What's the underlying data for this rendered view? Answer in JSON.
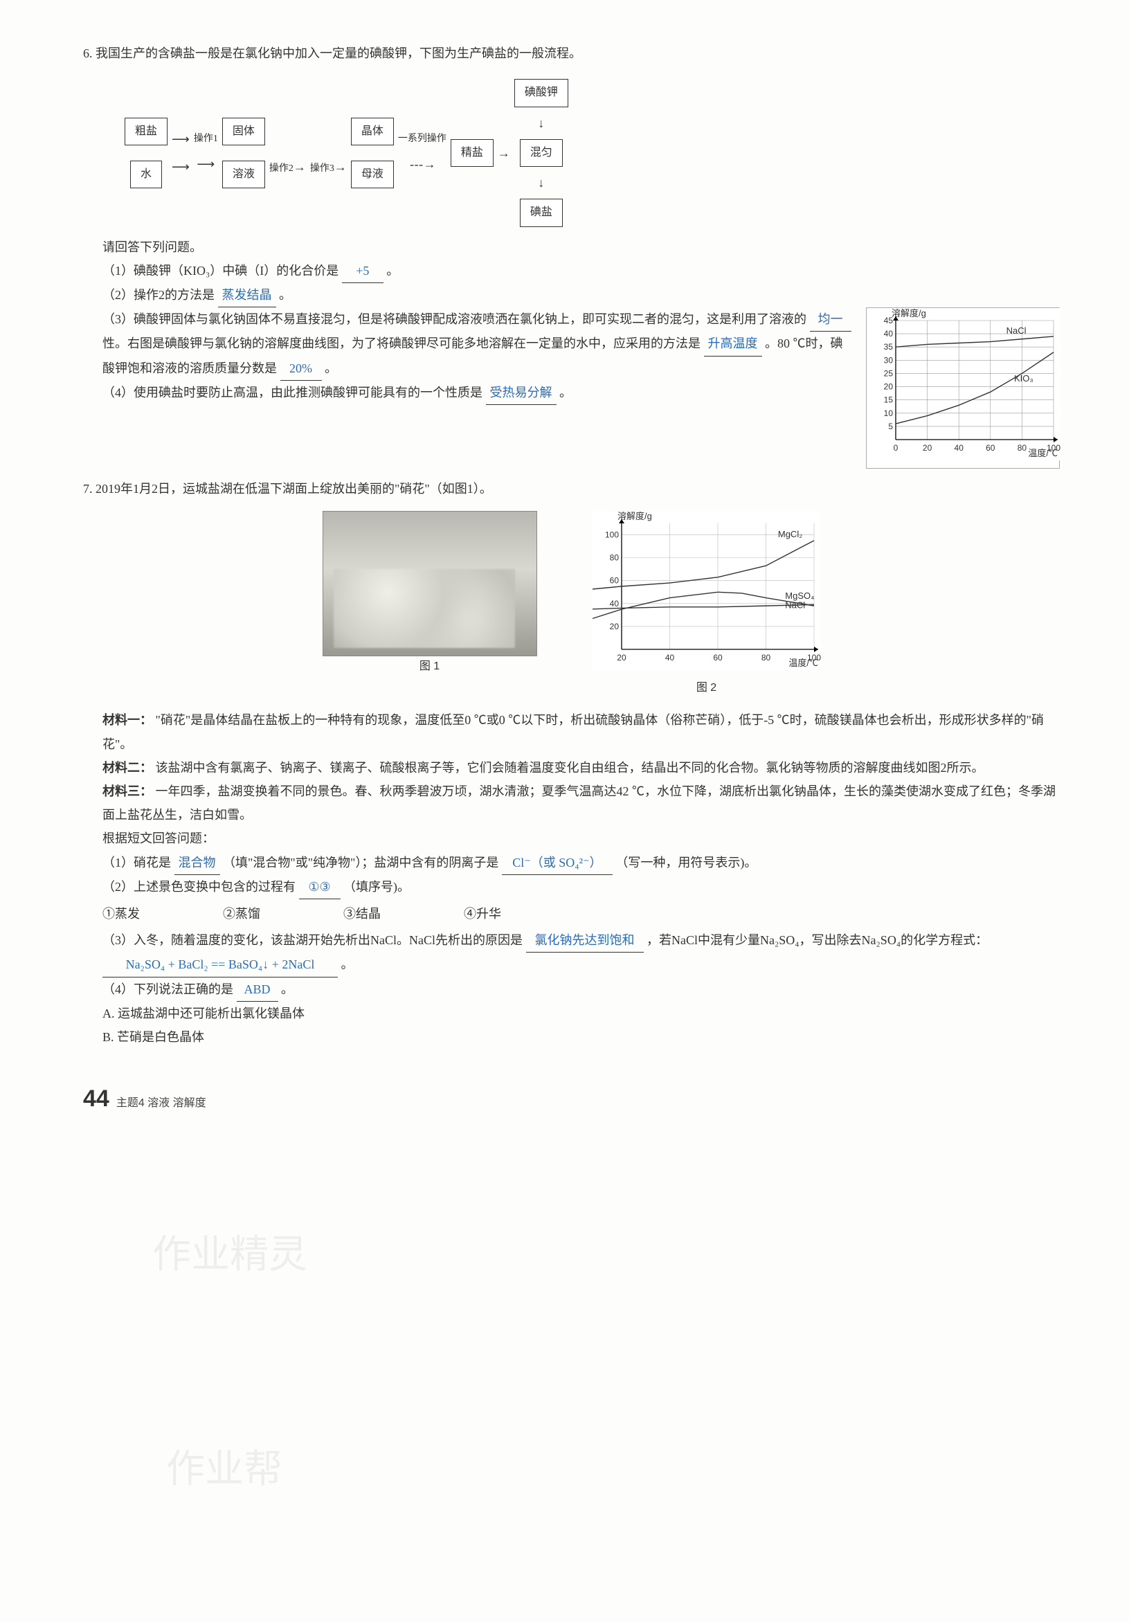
{
  "q6": {
    "stem": "6. 我国生产的含碘盐一般是在氯化钠中加入一定量的碘酸钾，下图为生产碘盐的一般流程。",
    "flow": {
      "n_cusalt": "粗盐",
      "n_water": "水",
      "n_op1": "操作1",
      "n_solid": "固体",
      "n_sol": "溶液",
      "n_op2": "操作2",
      "n_op3": "操作3",
      "n_crystal": "晶体",
      "n_mother": "母液",
      "n_series": "一系列操作",
      "n_fine": "精盐",
      "n_kio3": "碘酸钾",
      "n_mix": "混匀",
      "n_isalt": "碘盐"
    },
    "prompt": "请回答下列问题。",
    "p1_a": "（1）碘酸钾（KIO₃）中碘（I）的化合价是",
    "p1_ans": "+5",
    "p1_b": "。",
    "p2_a": "（2）操作2的方法是",
    "p2_ans": "蒸发结晶",
    "p2_b": "。",
    "p3_a": "（3）碘酸钾固体与氯化钠固体不易直接混匀，但是将碘酸钾配成溶液喷洒在氯化钠上，即可实现二者的混匀，这是利用了溶液的",
    "p3_ans1": "均一",
    "p3_b": "性。右图是碘酸钾与氯化钠的溶解度曲线图，为了将碘酸钾尽可能多地溶解在一定量的水中，应采用的方法是",
    "p3_ans2": "升高温度",
    "p3_c": "。80 ℃时，碘酸钾饱和溶液的溶质质量分数是",
    "p3_ans3": "20%",
    "p3_d": "。",
    "p4_a": "（4）使用碘盐时要防止高温，由此推测碘酸钾可能具有的一个性质是",
    "p4_ans": "受热易分解",
    "p4_b": "。",
    "chart": {
      "ylabel": "溶解度/g",
      "xlabel": "温度/℃",
      "xticks": [
        0,
        20,
        40,
        60,
        80,
        100
      ],
      "yticks": [
        5,
        10,
        15,
        20,
        25,
        30,
        35,
        40,
        45
      ],
      "ylim": [
        0,
        45
      ],
      "series": [
        {
          "name": "NaCl",
          "points": [
            [
              0,
              35
            ],
            [
              20,
              36
            ],
            [
              40,
              36.5
            ],
            [
              60,
              37
            ],
            [
              80,
              38
            ],
            [
              100,
              39
            ]
          ],
          "color": "#333"
        },
        {
          "name": "KIO₃",
          "points": [
            [
              0,
              6
            ],
            [
              20,
              9
            ],
            [
              40,
              13
            ],
            [
              60,
              18
            ],
            [
              80,
              25
            ],
            [
              100,
              33
            ]
          ],
          "color": "#333"
        }
      ],
      "label_pos": {
        "NaCl": [
          70,
          40
        ],
        "KIO3": [
          75,
          22
        ]
      },
      "grid_color": "#999",
      "bg": "#ffffff",
      "line_w": 1.4
    }
  },
  "q7": {
    "stem": "7. 2019年1月2日，运城盐湖在低温下湖面上绽放出美丽的\"硝花\"（如图1）。",
    "fig1": "图 1",
    "fig2": "图 2",
    "chart": {
      "ylabel": "溶解度/g",
      "xlabel": "温度/℃",
      "xticks": [
        20,
        40,
        60,
        80,
        100
      ],
      "yticks": [
        20,
        40,
        60,
        80,
        100
      ],
      "ylim": [
        0,
        110
      ],
      "series": [
        {
          "name": "MgCl₂",
          "points": [
            [
              5,
              52
            ],
            [
              20,
              55
            ],
            [
              40,
              58
            ],
            [
              60,
              63
            ],
            [
              80,
              73
            ],
            [
              100,
              95
            ]
          ],
          "color": "#333"
        },
        {
          "name": "NaCl",
          "points": [
            [
              5,
              35
            ],
            [
              20,
              36
            ],
            [
              40,
              37
            ],
            [
              60,
              37
            ],
            [
              80,
              38
            ],
            [
              100,
              39
            ]
          ],
          "color": "#333"
        },
        {
          "name": "MgSO₄",
          "points": [
            [
              5,
              25
            ],
            [
              20,
              35
            ],
            [
              40,
              45
            ],
            [
              60,
              50
            ],
            [
              70,
              49
            ],
            [
              80,
              45
            ],
            [
              100,
              38
            ]
          ],
          "color": "#333"
        }
      ],
      "label_pos": {
        "MgCl2": [
          85,
          98
        ],
        "NaCl": [
          88,
          36
        ],
        "MgSO4": [
          88,
          44
        ]
      },
      "grid_color": "#bbb",
      "bg": "#ffffff",
      "line_w": 1.4
    },
    "m1_h": "材料一：",
    "m1": "\"硝花\"是晶体结晶在盐板上的一种特有的现象，温度低至0 ℃或0 ℃以下时，析出硫酸钠晶体（俗称芒硝），低于-5 ℃时，硫酸镁晶体也会析出，形成形状多样的\"硝花\"。",
    "m2_h": "材料二：",
    "m2": "该盐湖中含有氯离子、钠离子、镁离子、硫酸根离子等，它们会随着温度变化自由组合，结晶出不同的化合物。氯化钠等物质的溶解度曲线如图2所示。",
    "m3_h": "材料三：",
    "m3": "一年四季，盐湖变换着不同的景色。春、秋两季碧波万顷，湖水清澈；夏季气温高达42 ℃，水位下降，湖底析出氯化钠晶体，生长的藻类使湖水变成了红色；冬季湖面上盐花丛生，洁白如雪。",
    "sub": "根据短文回答问题：",
    "p1_a": "（1）硝花是",
    "p1_ans1": "混合物",
    "p1_b": "（填\"混合物\"或\"纯净物\"）；盐湖中含有的阴离子是",
    "p1_ans2": "Cl⁻（或 SO₄²⁻）",
    "p1_c": "（写一种，用符号表示)。",
    "p2_a": "（2）上述景色变换中包含的过程有",
    "p2_ans": "①③",
    "p2_b": "（填序号)。",
    "opts": {
      "a": "①蒸发",
      "b": "②蒸馏",
      "c": "③结晶",
      "d": "④升华"
    },
    "p3_a": "（3）入冬，随着温度的变化，该盐湖开始先析出NaCl。NaCl先析出的原因是",
    "p3_ans1": "氯化钠先达到饱和",
    "p3_b": "，若NaCl中混有少量Na₂SO₄，写出除去Na₂SO₄的化学方程式：",
    "p3_ans2": "Na₂SO₄ + BaCl₂ == BaSO₄↓ + 2NaCl",
    "p3_c": "。",
    "p4_a": "（4）下列说法正确的是",
    "p4_ans": "ABD",
    "p4_b": "。",
    "oA": "A. 运城盐湖中还可能析出氯化镁晶体",
    "oB": "B. 芒硝是白色晶体"
  },
  "footer": {
    "page": "44",
    "topic": "主题4  溶液  溶解度"
  },
  "watermarks": [
    "作业精灵",
    "作业帮"
  ]
}
